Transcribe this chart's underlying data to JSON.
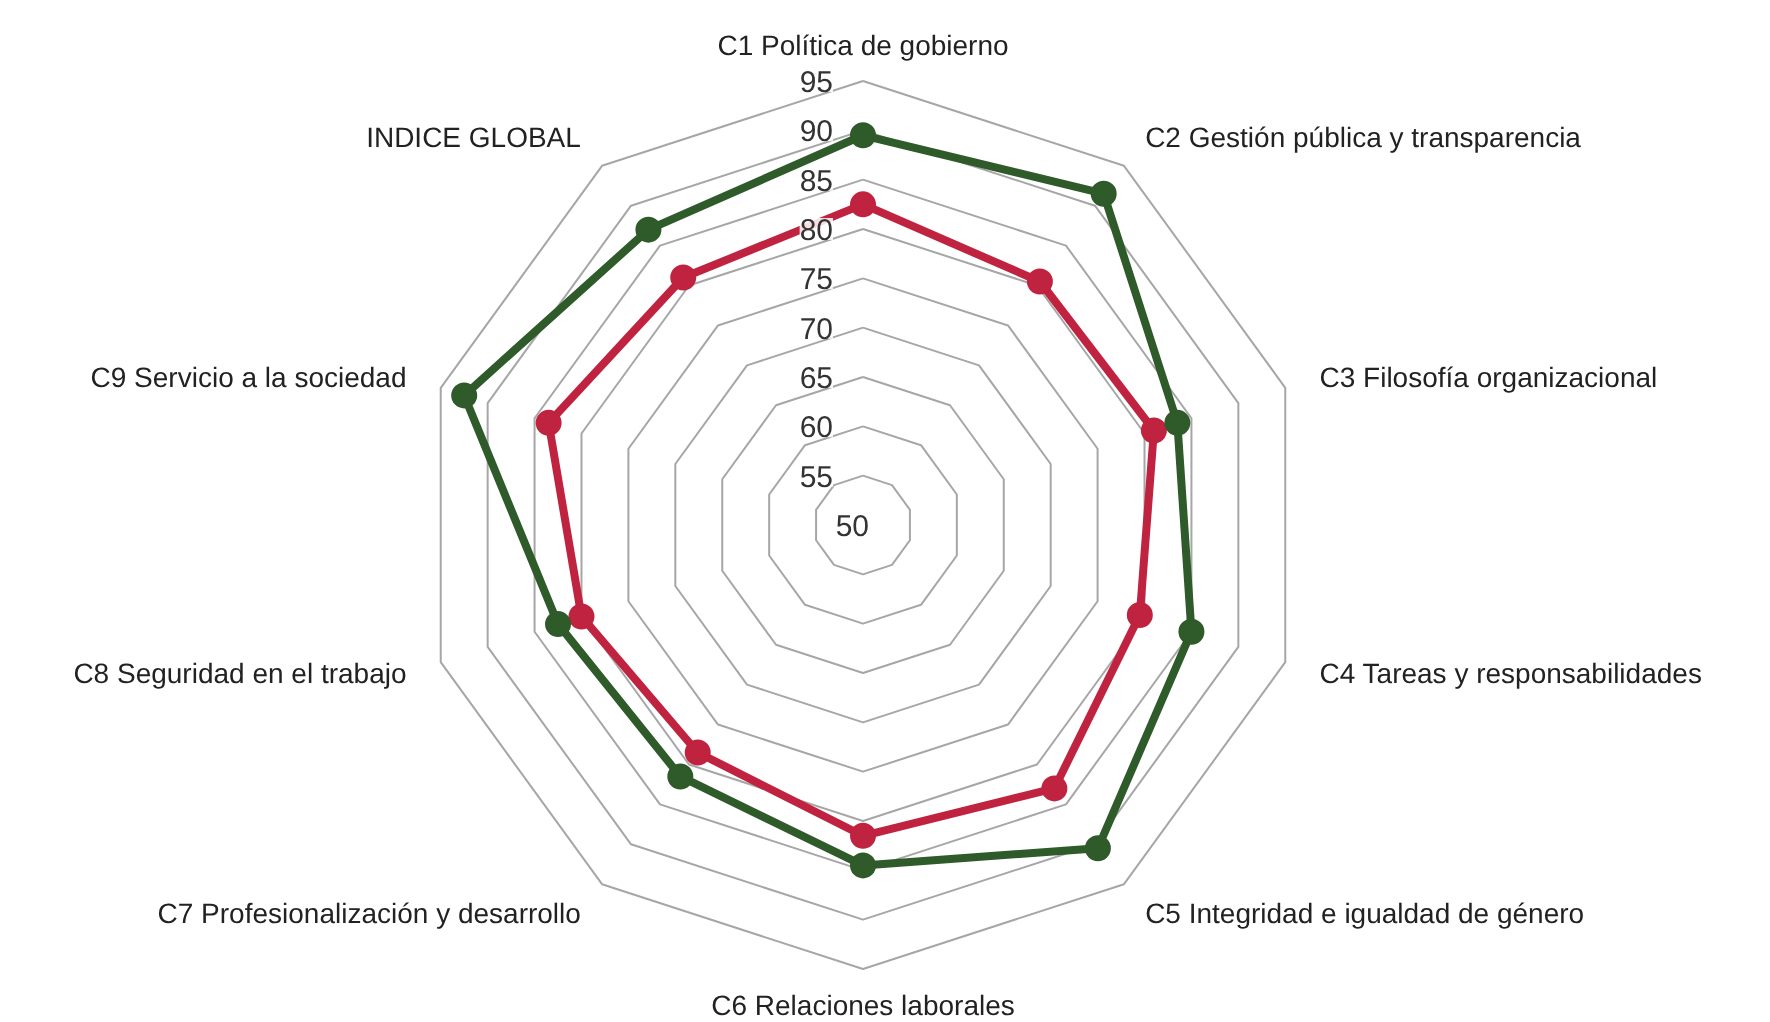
{
  "chart_data": {
    "type": "radar",
    "categories": [
      "C1 Política de gobierno",
      "C2 Gestión pública y transparencia",
      "C3 Filosofía organizacional",
      "C4 Tareas y responsabilidades",
      "C5 Integridad e igualdad de género",
      "C6 Relaciones laborales",
      "C7 Profesionalización y desarrollo",
      "C8 Seguridad en el trabajo",
      "C9 Servicio a la sociedad",
      "INDICE GLOBAL"
    ],
    "ylim": [
      50,
      95
    ],
    "yticks": [
      50,
      55,
      60,
      65,
      70,
      75,
      80,
      85,
      90,
      95
    ],
    "grid": true,
    "marker": "circle",
    "series": [
      {
        "color": "#c0233f",
        "values": [
          82.5,
          80.5,
          81,
          79.5,
          83,
          81.5,
          78.5,
          80,
          83.5,
          81
        ]
      },
      {
        "color": "#2f5a2a",
        "values": [
          89.5,
          91.5,
          83.5,
          85,
          90.5,
          84.5,
          81.5,
          82.5,
          92.5,
          87
        ]
      }
    ]
  }
}
